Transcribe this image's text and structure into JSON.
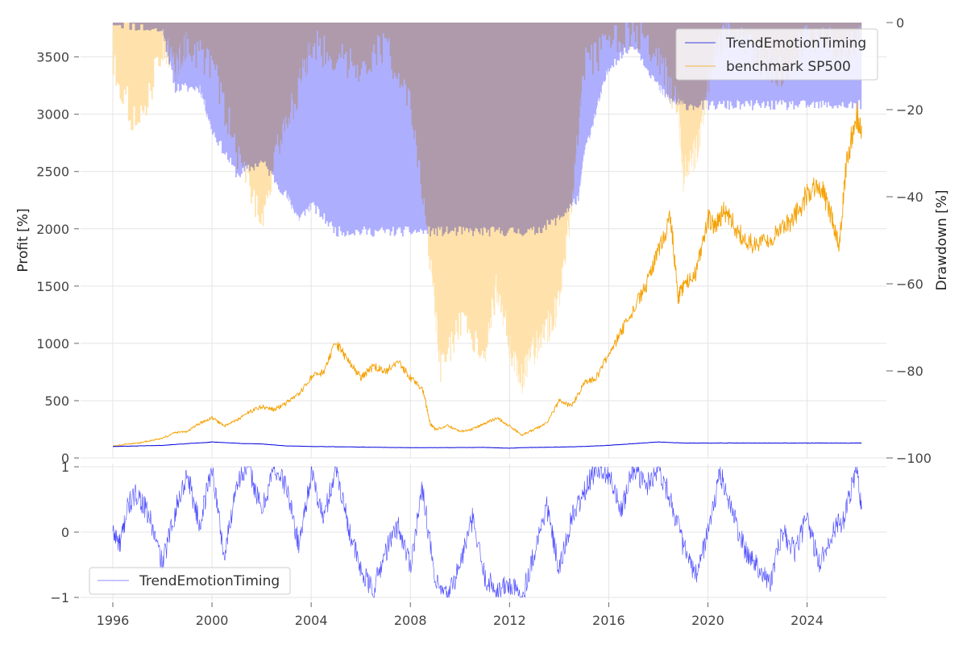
{
  "chart_data": [
    {
      "type": "line",
      "panel": "profit",
      "ylabel": "Profit [%]",
      "y2label": "Drawdown [%]",
      "ylim": [
        0,
        3800
      ],
      "y2lim": [
        -100,
        0
      ],
      "yticks": [
        0,
        500,
        1000,
        1500,
        2000,
        2500,
        3000,
        3500
      ],
      "y2ticks": [
        0,
        -20,
        -40,
        -60,
        -80,
        -100
      ],
      "y2tick_labels": [
        "0",
        "−20",
        "−40",
        "−60",
        "−80",
        "−100"
      ],
      "xlim": [
        1994.7,
        2027.2
      ],
      "legend": {
        "location": "top-right"
      },
      "series": [
        {
          "name": "TrendEmotionTiming",
          "color": "#0000dd",
          "x": [
            1996.0,
            1997.0,
            1998.0,
            1999.0,
            1999.8,
            2000.0,
            2001.0,
            2002.0,
            2003.0,
            2004.0,
            2005.0,
            2006.0,
            2007.0,
            2008.0,
            2009.0,
            2010.0,
            2011.0,
            2012.0,
            2012.5,
            2013.0,
            2014.0,
            2015.0,
            2016.0,
            2017.0,
            2018.0,
            2019.0,
            2020.0,
            2021.0,
            2022.0,
            2023.0,
            2024.0,
            2025.0,
            2026.2
          ],
          "values": [
            100,
            105,
            110,
            125,
            135,
            140,
            128,
            122,
            105,
            100,
            98,
            95,
            92,
            90,
            90,
            91,
            92,
            85,
            90,
            92,
            95,
            100,
            110,
            125,
            140,
            130,
            130,
            130,
            130,
            130,
            130,
            130,
            130
          ]
        },
        {
          "name": "benchmark SP500",
          "color": "#f5a000",
          "x": [
            1996.0,
            1996.5,
            1997.0,
            1997.5,
            1998.0,
            1998.5,
            1999.0,
            1999.5,
            2000.0,
            2000.5,
            2001.0,
            2001.5,
            2002.0,
            2002.5,
            2003.0,
            2003.5,
            2004.0,
            2004.5,
            2005.0,
            2005.5,
            2006.0,
            2006.5,
            2007.0,
            2007.5,
            2008.0,
            2008.5,
            2008.8,
            2009.0,
            2009.5,
            2010.0,
            2010.5,
            2011.0,
            2011.5,
            2012.0,
            2012.5,
            2013.0,
            2013.5,
            2014.0,
            2014.5,
            2015.0,
            2015.5,
            2016.0,
            2016.5,
            2017.0,
            2017.5,
            2018.0,
            2018.5,
            2018.8,
            2019.0,
            2019.5,
            2020.0,
            2020.3,
            2020.6,
            2021.0,
            2021.5,
            2022.0,
            2022.5,
            2023.0,
            2023.5,
            2024.0,
            2024.5,
            2025.0,
            2025.3,
            2025.6,
            2026.0,
            2026.2
          ],
          "values": [
            100,
            120,
            130,
            150,
            170,
            220,
            230,
            300,
            350,
            280,
            330,
            400,
            450,
            420,
            480,
            550,
            700,
            750,
            1000,
            850,
            700,
            800,
            750,
            850,
            700,
            600,
            300,
            250,
            280,
            230,
            250,
            300,
            350,
            280,
            200,
            250,
            300,
            500,
            450,
            650,
            700,
            900,
            1100,
            1300,
            1500,
            1800,
            2100,
            1400,
            1500,
            1600,
            2100,
            2000,
            2150,
            2050,
            1900,
            1850,
            1900,
            2000,
            2100,
            2300,
            2400,
            2100,
            1850,
            2600,
            3000,
            2900
          ]
        }
      ],
      "drawdown": [
        {
          "name": "TrendEmotionTiming drawdown",
          "color": "#aaaaff",
          "x": [
            1996.0,
            1998.0,
            1998.5,
            1999.5,
            2000.0,
            2001.0,
            2002.0,
            2003.0,
            2003.5,
            2004.0,
            2005.0,
            2006.0,
            2007.0,
            2008.0,
            2009.0,
            2010.0,
            2011.0,
            2012.0,
            2013.0,
            2014.0,
            2014.8,
            2015.0,
            2015.5,
            2016.0,
            2017.0,
            2018.0,
            2018.5,
            2019.0,
            2020.0,
            2021.0,
            2022.0,
            2023.0,
            2024.0,
            2025.0,
            2026.2
          ],
          "values": [
            0,
            -2,
            -15,
            -15,
            -25,
            -35,
            -32,
            -40,
            -45,
            -42,
            -48,
            -48,
            -48,
            -48,
            -48,
            -48,
            -48,
            -48,
            -48,
            -45,
            -40,
            -30,
            -20,
            -10,
            -5,
            -15,
            -18,
            -19,
            -19,
            -19,
            -19,
            -19,
            -19,
            -19,
            -19
          ]
        },
        {
          "name": "benchmark SP500 drawdown",
          "color": "#ffe0a6",
          "x": [
            1996.0,
            1997.0,
            1998.0,
            1998.5,
            1999.0,
            2000.0,
            2001.0,
            2002.0,
            2002.8,
            2003.5,
            2004.0,
            2005.0,
            2006.0,
            2007.0,
            2008.0,
            2008.8,
            2009.2,
            2010.0,
            2011.0,
            2011.5,
            2012.0,
            2012.5,
            2013.0,
            2013.5,
            2014.0,
            2014.5,
            2015.0,
            2016.0,
            2017.0,
            2018.0,
            2018.8,
            2019.0,
            2019.5,
            2020.0,
            2020.3,
            2021.0,
            2022.0,
            2023.0,
            2024.0,
            2025.0,
            2025.3,
            2026.2
          ],
          "values": [
            -10,
            -25,
            -5,
            -10,
            -5,
            -10,
            -30,
            -45,
            -25,
            -15,
            -5,
            -8,
            -10,
            -5,
            -20,
            -55,
            -80,
            -70,
            -75,
            -60,
            -75,
            -82,
            -75,
            -70,
            -65,
            -40,
            -10,
            -5,
            -2,
            -8,
            -20,
            -35,
            -30,
            -15,
            -5,
            -2,
            -8,
            -12,
            -3,
            -5,
            -8,
            -3
          ]
        }
      ]
    },
    {
      "type": "line",
      "panel": "signal",
      "ylim": [
        -1,
        1
      ],
      "yticks": [
        -1,
        0,
        1
      ],
      "ytick_labels": [
        "−1",
        "0",
        "1"
      ],
      "xticks": [
        1996,
        2000,
        2004,
        2008,
        2012,
        2016,
        2020,
        2024
      ],
      "xtick_labels": [
        "1996",
        "2000",
        "2004",
        "2008",
        "2012",
        "2016",
        "2020",
        "2024"
      ],
      "xlim": [
        1994.7,
        2027.2
      ],
      "legend": {
        "location": "bottom-left"
      },
      "series": [
        {
          "name": "TrendEmotionTiming",
          "color": "#3333ff",
          "x": [
            1996.0,
            1996.3,
            1996.6,
            1997.0,
            1997.5,
            1998.0,
            1998.5,
            1999.0,
            1999.5,
            2000.0,
            2000.5,
            2001.0,
            2001.5,
            2002.0,
            2002.5,
            2003.0,
            2003.5,
            2004.0,
            2004.5,
            2005.0,
            2005.5,
            2006.0,
            2006.5,
            2007.0,
            2007.5,
            2008.0,
            2008.5,
            2009.0,
            2009.5,
            2010.0,
            2010.5,
            2011.0,
            2011.5,
            2012.0,
            2012.5,
            2013.0,
            2013.5,
            2014.0,
            2014.5,
            2015.0,
            2015.5,
            2016.0,
            2016.5,
            2017.0,
            2017.5,
            2018.0,
            2018.5,
            2019.0,
            2019.5,
            2020.0,
            2020.5,
            2021.0,
            2021.5,
            2022.0,
            2022.5,
            2023.0,
            2023.5,
            2024.0,
            2024.5,
            2025.0,
            2025.5,
            2026.0,
            2026.2
          ],
          "values": [
            0,
            -0.2,
            0.4,
            0.6,
            0.2,
            -0.5,
            0.3,
            0.9,
            0.1,
            1.0,
            -0.4,
            0.8,
            1.0,
            0.3,
            1.0,
            0.7,
            -0.2,
            0.9,
            0.2,
            1.0,
            0.1,
            -0.6,
            -0.9,
            -0.3,
            0.1,
            -0.5,
            0.7,
            -0.8,
            -1.0,
            -0.5,
            0.2,
            -0.7,
            -0.9,
            -0.8,
            -1.0,
            -0.3,
            0.4,
            -0.6,
            0.2,
            0.6,
            1.0,
            0.9,
            0.3,
            1.0,
            0.7,
            1.0,
            0.5,
            -0.2,
            -0.7,
            0.0,
            0.9,
            0.3,
            -0.3,
            -0.5,
            -0.8,
            0.0,
            -0.3,
            0.2,
            -0.5,
            0.0,
            0.2,
            1.0,
            0.4
          ]
        }
      ]
    }
  ]
}
